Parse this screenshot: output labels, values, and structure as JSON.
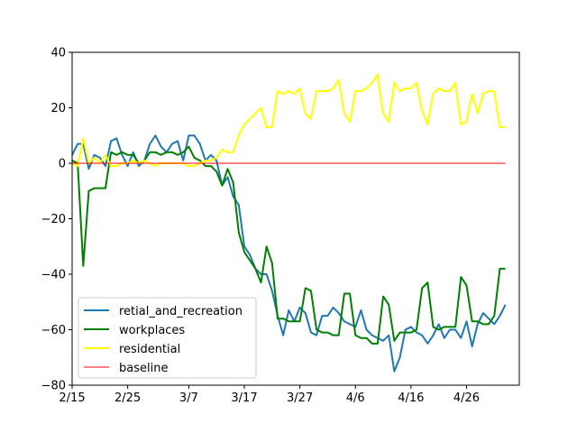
{
  "chart_data": {
    "type": "line",
    "title": "",
    "xlabel": "",
    "ylabel": "",
    "x": [
      "2/15",
      "2/16",
      "2/17",
      "2/18",
      "2/19",
      "2/20",
      "2/21",
      "2/22",
      "2/23",
      "2/24",
      "2/25",
      "2/26",
      "2/27",
      "2/28",
      "2/29",
      "3/1",
      "3/2",
      "3/3",
      "3/4",
      "3/5",
      "3/6",
      "3/7",
      "3/8",
      "3/9",
      "3/10",
      "3/11",
      "3/12",
      "3/13",
      "3/14",
      "3/15",
      "3/16",
      "3/17",
      "3/18",
      "3/19",
      "3/20",
      "3/21",
      "3/22",
      "3/23",
      "3/24",
      "3/25",
      "3/26",
      "3/27",
      "3/28",
      "3/29",
      "3/30",
      "3/31",
      "4/1",
      "4/2",
      "4/3",
      "4/4",
      "4/5",
      "4/6",
      "4/7",
      "4/8",
      "4/9",
      "4/10",
      "4/11",
      "4/12",
      "4/13",
      "4/14",
      "4/15",
      "4/16",
      "4/17",
      "4/18",
      "4/19",
      "4/20",
      "4/21",
      "4/22",
      "4/23",
      "4/24",
      "4/25",
      "4/26",
      "4/27",
      "4/28",
      "4/29",
      "4/30",
      "5/1",
      "5/2",
      "5/3"
    ],
    "xticks": [
      "2/15",
      "2/25",
      "3/7",
      "3/17",
      "3/27",
      "4/6",
      "4/16",
      "4/26"
    ],
    "xlim": [
      "2/15",
      "5/6"
    ],
    "ylim": [
      -80,
      40
    ],
    "yticks": [
      40,
      20,
      0,
      -20,
      -40,
      -60,
      -80
    ],
    "ytick_labels": [
      "40",
      "20",
      "0",
      "−20",
      "−40",
      "−60",
      "−80"
    ],
    "grid": false,
    "legend_position": "lower-left",
    "series": [
      {
        "name": "retial_and_recreation",
        "color": "#1f77b4",
        "values": [
          3,
          7,
          7,
          -2,
          3,
          2,
          -1,
          8,
          9,
          3,
          -1,
          4,
          -1,
          1,
          7,
          10,
          6,
          4,
          7,
          8,
          1,
          10,
          10,
          7,
          1,
          3,
          1,
          -8,
          -5,
          -12,
          -15,
          -30,
          -33,
          -38,
          -40,
          -40,
          -46,
          -55,
          -62,
          -53,
          -57,
          -52,
          -54,
          -61,
          -62,
          -55,
          -55,
          -52,
          -54,
          -57,
          -58,
          -59,
          -53,
          -60,
          -62,
          -63,
          -64,
          -62,
          -75,
          -70,
          -60,
          -59,
          -61,
          -62,
          -65,
          -62,
          -58,
          -63,
          -60,
          -60,
          -63,
          -57,
          -66,
          -58,
          -54,
          -56,
          -58,
          -55,
          -51
        ]
      },
      {
        "name": "workplaces",
        "color": "#008000",
        "values": [
          1,
          0,
          -37,
          -10,
          -9,
          -9,
          -9,
          4,
          3,
          4,
          3,
          3,
          0,
          1,
          4,
          4,
          3,
          4,
          4,
          3,
          4,
          6,
          2,
          1,
          -1,
          -1,
          -3,
          -8,
          -2,
          -7,
          -25,
          -32,
          -35,
          -38,
          -43,
          -30,
          -36,
          -56,
          -56,
          -57,
          -57,
          -57,
          -45,
          -46,
          -60,
          -61,
          -61,
          -62,
          -62,
          -47,
          -47,
          -62,
          -63,
          -63,
          -65,
          -65,
          -48,
          -51,
          -64,
          -61,
          -61,
          -61,
          -60,
          -45,
          -43,
          -59,
          -60,
          -59,
          -59,
          -59,
          -41,
          -44,
          -57,
          -57,
          -58,
          -58,
          -55,
          -38,
          -38
        ]
      },
      {
        "name": "residential",
        "color": "#ffff00",
        "values": [
          0,
          -1,
          9,
          0,
          2,
          0,
          3,
          -1,
          -1,
          0,
          0,
          1,
          0,
          1,
          0,
          -1,
          0,
          0,
          0,
          0,
          0,
          -1,
          -1,
          0,
          1,
          1,
          2,
          5,
          4,
          4,
          10,
          14,
          16,
          18,
          20,
          13,
          13,
          26,
          25,
          26,
          25,
          27,
          18,
          16,
          26,
          26,
          26,
          27,
          30,
          18,
          15,
          26,
          26,
          27,
          29,
          32,
          18,
          15,
          29,
          26,
          27,
          27,
          29,
          19,
          14,
          25,
          27,
          26,
          26,
          29,
          14,
          15,
          25,
          18,
          25,
          26,
          26,
          13,
          13
        ]
      },
      {
        "name": "baseline",
        "color": "#ff0000",
        "values": [
          0,
          0,
          0,
          0,
          0,
          0,
          0,
          0,
          0,
          0,
          0,
          0,
          0,
          0,
          0,
          0,
          0,
          0,
          0,
          0,
          0,
          0,
          0,
          0,
          0,
          0,
          0,
          0,
          0,
          0,
          0,
          0,
          0,
          0,
          0,
          0,
          0,
          0,
          0,
          0,
          0,
          0,
          0,
          0,
          0,
          0,
          0,
          0,
          0,
          0,
          0,
          0,
          0,
          0,
          0,
          0,
          0,
          0,
          0,
          0,
          0,
          0,
          0,
          0,
          0,
          0,
          0,
          0,
          0,
          0,
          0,
          0,
          0,
          0,
          0,
          0,
          0,
          0,
          0
        ]
      }
    ]
  }
}
